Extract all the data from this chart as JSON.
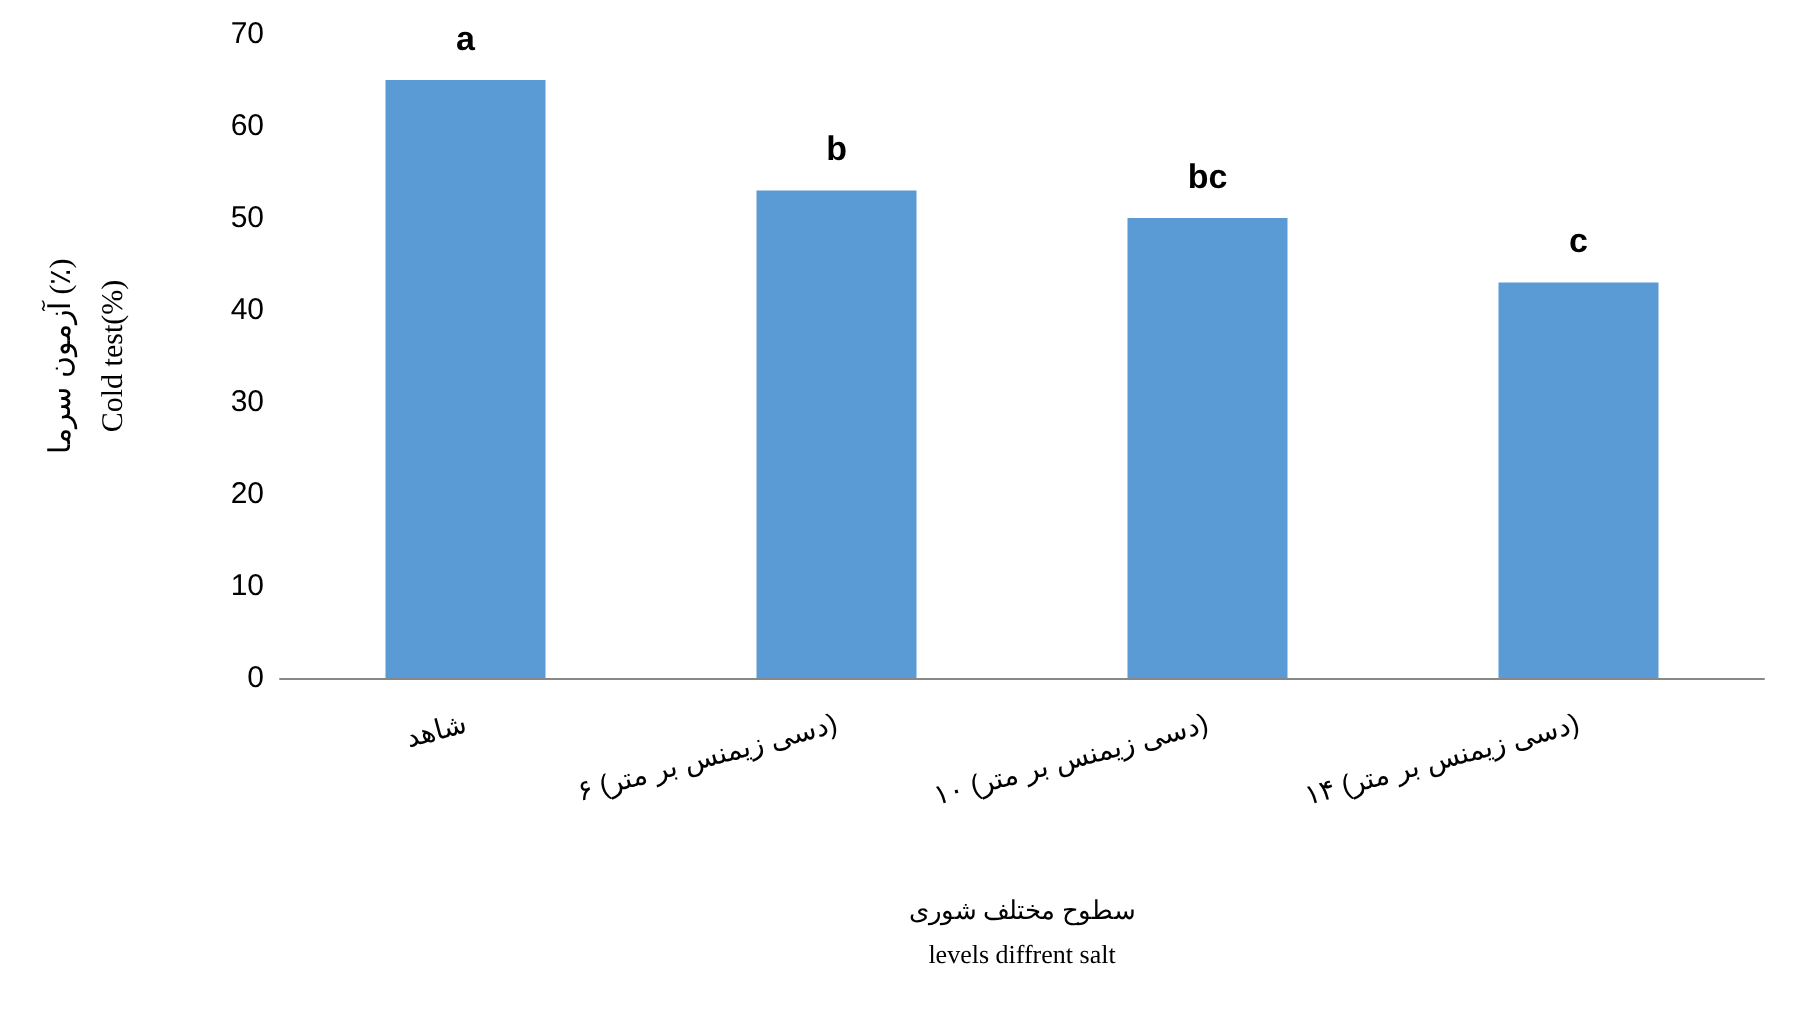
{
  "chart_data": {
    "type": "bar",
    "xlabel": "سطوح مختلف شوری\nlevels diffrent salt",
    "ylabel": "آزمون سرما (٪)\nCold test(%)",
    "categories": [
      "شاهد",
      "۶ (دسی زیمنس بر متر)",
      "۱۰ (دسی زیمنس بر متر)",
      "۱۴ (دسی زیمنس بر متر)"
    ],
    "values": [
      65,
      53,
      50,
      43
    ],
    "value_labels": [
      "a",
      "b",
      "bc",
      "c"
    ],
    "color": "#5b9bd5",
    "ylim": [
      0,
      70
    ],
    "yticks": [
      0,
      10,
      20,
      30,
      40,
      50,
      60,
      70
    ],
    "grid": false
  }
}
